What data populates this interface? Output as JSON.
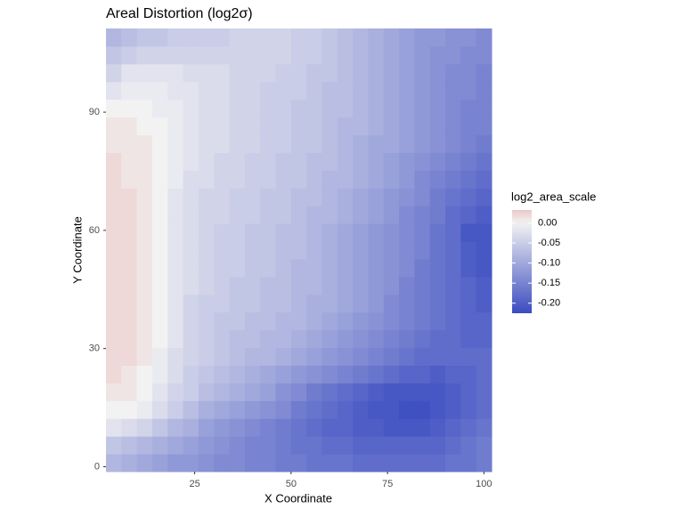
{
  "chart_data": {
    "type": "heatmap",
    "title": "Areal Distortion (log2σ)",
    "x_label": "X Coordinate",
    "y_label": "Y Coordinate",
    "legend_title": "log2_area_scale",
    "x": [
      4,
      8,
      12,
      16,
      20,
      24,
      28,
      32,
      36,
      40,
      44,
      48,
      52,
      56,
      60,
      64,
      68,
      72,
      76,
      80,
      84,
      88,
      92,
      96,
      100
    ],
    "y": [
      1,
      5.5,
      10,
      14.5,
      19,
      23.5,
      28,
      32.5,
      37,
      41.5,
      46,
      50.5,
      55,
      59.5,
      64,
      68.5,
      73,
      77.5,
      82,
      86.5,
      91,
      95.5,
      100,
      104.5,
      109
    ],
    "z": [
      [
        -0.08,
        -0.09,
        -0.1,
        -0.11,
        -0.12,
        -0.12,
        -0.13,
        -0.14,
        -0.14,
        -0.15,
        -0.15,
        -0.16,
        -0.16,
        -0.17,
        -0.17,
        -0.17,
        -0.18,
        -0.18,
        -0.18,
        -0.18,
        -0.18,
        -0.18,
        -0.17,
        -0.17,
        -0.16
      ],
      [
        -0.06,
        -0.07,
        -0.08,
        -0.09,
        -0.1,
        -0.11,
        -0.12,
        -0.13,
        -0.14,
        -0.15,
        -0.15,
        -0.16,
        -0.17,
        -0.17,
        -0.18,
        -0.18,
        -0.19,
        -0.19,
        -0.19,
        -0.19,
        -0.19,
        -0.19,
        -0.18,
        -0.17,
        -0.16
      ],
      [
        -0.02,
        -0.03,
        -0.04,
        -0.06,
        -0.08,
        -0.09,
        -0.11,
        -0.12,
        -0.13,
        -0.14,
        -0.15,
        -0.16,
        -0.17,
        -0.18,
        -0.19,
        -0.19,
        -0.2,
        -0.2,
        -0.21,
        -0.21,
        -0.21,
        -0.2,
        -0.19,
        -0.18,
        -0.17
      ],
      [
        0.0,
        0.0,
        -0.01,
        -0.03,
        -0.05,
        -0.07,
        -0.09,
        -0.1,
        -0.11,
        -0.12,
        -0.13,
        -0.14,
        -0.16,
        -0.17,
        -0.18,
        -0.19,
        -0.2,
        -0.21,
        -0.21,
        -0.22,
        -0.22,
        -0.21,
        -0.2,
        -0.19,
        -0.18
      ],
      [
        0.01,
        0.01,
        0.0,
        -0.02,
        -0.04,
        -0.05,
        -0.07,
        -0.08,
        -0.09,
        -0.1,
        -0.11,
        -0.13,
        -0.14,
        -0.16,
        -0.17,
        -0.18,
        -0.19,
        -0.2,
        -0.21,
        -0.21,
        -0.21,
        -0.21,
        -0.2,
        -0.19,
        -0.18
      ],
      [
        0.02,
        0.01,
        0.0,
        -0.01,
        -0.03,
        -0.05,
        -0.06,
        -0.07,
        -0.08,
        -0.09,
        -0.1,
        -0.11,
        -0.12,
        -0.13,
        -0.14,
        -0.15,
        -0.16,
        -0.17,
        -0.18,
        -0.19,
        -0.19,
        -0.2,
        -0.19,
        -0.19,
        -0.18
      ],
      [
        0.02,
        0.02,
        0.01,
        -0.01,
        -0.03,
        -0.04,
        -0.05,
        -0.06,
        -0.07,
        -0.08,
        -0.08,
        -0.09,
        -0.1,
        -0.11,
        -0.12,
        -0.13,
        -0.14,
        -0.15,
        -0.16,
        -0.17,
        -0.18,
        -0.18,
        -0.18,
        -0.18,
        -0.18
      ],
      [
        0.02,
        0.02,
        0.01,
        0.0,
        -0.02,
        -0.04,
        -0.05,
        -0.06,
        -0.07,
        -0.07,
        -0.08,
        -0.08,
        -0.09,
        -0.1,
        -0.11,
        -0.12,
        -0.13,
        -0.14,
        -0.15,
        -0.16,
        -0.17,
        -0.18,
        -0.18,
        -0.19,
        -0.19
      ],
      [
        0.02,
        0.02,
        0.01,
        0.0,
        -0.02,
        -0.04,
        -0.05,
        -0.06,
        -0.06,
        -0.07,
        -0.07,
        -0.08,
        -0.08,
        -0.09,
        -0.1,
        -0.11,
        -0.12,
        -0.13,
        -0.14,
        -0.15,
        -0.16,
        -0.17,
        -0.18,
        -0.19,
        -0.19
      ],
      [
        0.02,
        0.02,
        0.01,
        0.0,
        -0.02,
        -0.04,
        -0.05,
        -0.05,
        -0.06,
        -0.06,
        -0.07,
        -0.07,
        -0.08,
        -0.09,
        -0.09,
        -0.1,
        -0.11,
        -0.12,
        -0.14,
        -0.15,
        -0.16,
        -0.17,
        -0.18,
        -0.19,
        -0.2
      ],
      [
        0.02,
        0.02,
        0.01,
        0.0,
        -0.02,
        -0.03,
        -0.04,
        -0.05,
        -0.06,
        -0.06,
        -0.07,
        -0.07,
        -0.08,
        -0.08,
        -0.09,
        -0.1,
        -0.11,
        -0.12,
        -0.13,
        -0.15,
        -0.16,
        -0.17,
        -0.18,
        -0.19,
        -0.2
      ],
      [
        0.02,
        0.02,
        0.01,
        0.0,
        -0.02,
        -0.03,
        -0.04,
        -0.05,
        -0.05,
        -0.06,
        -0.06,
        -0.07,
        -0.08,
        -0.08,
        -0.09,
        -0.1,
        -0.11,
        -0.12,
        -0.13,
        -0.14,
        -0.16,
        -0.17,
        -0.18,
        -0.2,
        -0.21
      ],
      [
        0.02,
        0.02,
        0.01,
        0.0,
        -0.02,
        -0.03,
        -0.04,
        -0.05,
        -0.05,
        -0.06,
        -0.06,
        -0.07,
        -0.07,
        -0.08,
        -0.09,
        -0.1,
        -0.11,
        -0.12,
        -0.13,
        -0.14,
        -0.15,
        -0.17,
        -0.18,
        -0.2,
        -0.21
      ],
      [
        0.02,
        0.02,
        0.01,
        0.0,
        -0.02,
        -0.03,
        -0.04,
        -0.05,
        -0.05,
        -0.06,
        -0.06,
        -0.07,
        -0.07,
        -0.08,
        -0.09,
        -0.1,
        -0.11,
        -0.12,
        -0.13,
        -0.14,
        -0.15,
        -0.17,
        -0.18,
        -0.21,
        -0.21
      ],
      [
        0.02,
        0.02,
        0.01,
        0.0,
        -0.02,
        -0.03,
        -0.04,
        -0.04,
        -0.05,
        -0.05,
        -0.06,
        -0.06,
        -0.07,
        -0.08,
        -0.08,
        -0.09,
        -0.1,
        -0.11,
        -0.12,
        -0.14,
        -0.15,
        -0.16,
        -0.18,
        -0.19,
        -0.2
      ],
      [
        0.02,
        0.02,
        0.01,
        0.0,
        -0.02,
        -0.03,
        -0.04,
        -0.04,
        -0.05,
        -0.05,
        -0.06,
        -0.06,
        -0.07,
        -0.07,
        -0.08,
        -0.09,
        -0.1,
        -0.11,
        -0.12,
        -0.13,
        -0.14,
        -0.16,
        -0.17,
        -0.18,
        -0.19
      ],
      [
        0.02,
        0.01,
        0.01,
        0.0,
        -0.01,
        -0.03,
        -0.03,
        -0.04,
        -0.04,
        -0.05,
        -0.05,
        -0.06,
        -0.06,
        -0.07,
        -0.08,
        -0.08,
        -0.09,
        -0.1,
        -0.11,
        -0.12,
        -0.14,
        -0.15,
        -0.16,
        -0.17,
        -0.18
      ],
      [
        0.02,
        0.01,
        0.01,
        0.0,
        -0.01,
        -0.02,
        -0.03,
        -0.04,
        -0.04,
        -0.05,
        -0.05,
        -0.06,
        -0.06,
        -0.07,
        -0.07,
        -0.08,
        -0.09,
        -0.1,
        -0.11,
        -0.12,
        -0.13,
        -0.14,
        -0.15,
        -0.16,
        -0.17
      ],
      [
        0.01,
        0.01,
        0.01,
        0.0,
        -0.01,
        -0.02,
        -0.03,
        -0.03,
        -0.04,
        -0.04,
        -0.05,
        -0.05,
        -0.06,
        -0.06,
        -0.07,
        -0.08,
        -0.09,
        -0.1,
        -0.1,
        -0.11,
        -0.12,
        -0.13,
        -0.14,
        -0.15,
        -0.16
      ],
      [
        0.01,
        0.01,
        0.0,
        0.0,
        -0.01,
        -0.02,
        -0.03,
        -0.03,
        -0.04,
        -0.04,
        -0.05,
        -0.05,
        -0.06,
        -0.06,
        -0.07,
        -0.08,
        -0.08,
        -0.09,
        -0.1,
        -0.11,
        -0.12,
        -0.13,
        -0.14,
        -0.15,
        -0.15
      ],
      [
        0.0,
        0.0,
        0.0,
        -0.01,
        -0.01,
        -0.02,
        -0.03,
        -0.03,
        -0.04,
        -0.04,
        -0.05,
        -0.05,
        -0.06,
        -0.06,
        -0.07,
        -0.07,
        -0.08,
        -0.09,
        -0.1,
        -0.11,
        -0.12,
        -0.13,
        -0.14,
        -0.15,
        -0.15
      ],
      [
        -0.02,
        -0.01,
        -0.01,
        -0.01,
        -0.02,
        -0.02,
        -0.03,
        -0.03,
        -0.04,
        -0.04,
        -0.05,
        -0.05,
        -0.05,
        -0.06,
        -0.07,
        -0.07,
        -0.08,
        -0.09,
        -0.1,
        -0.11,
        -0.12,
        -0.13,
        -0.14,
        -0.14,
        -0.15
      ],
      [
        -0.04,
        -0.02,
        -0.02,
        -0.02,
        -0.02,
        -0.03,
        -0.03,
        -0.03,
        -0.04,
        -0.04,
        -0.04,
        -0.05,
        -0.05,
        -0.06,
        -0.06,
        -0.07,
        -0.08,
        -0.09,
        -0.1,
        -0.11,
        -0.12,
        -0.13,
        -0.14,
        -0.14,
        -0.15
      ],
      [
        -0.06,
        -0.05,
        -0.04,
        -0.04,
        -0.04,
        -0.04,
        -0.04,
        -0.04,
        -0.04,
        -0.04,
        -0.04,
        -0.04,
        -0.05,
        -0.05,
        -0.06,
        -0.07,
        -0.08,
        -0.09,
        -0.1,
        -0.11,
        -0.12,
        -0.13,
        -0.13,
        -0.14,
        -0.14
      ],
      [
        -0.08,
        -0.07,
        -0.06,
        -0.06,
        -0.05,
        -0.05,
        -0.05,
        -0.05,
        -0.04,
        -0.04,
        -0.04,
        -0.04,
        -0.05,
        -0.05,
        -0.06,
        -0.07,
        -0.08,
        -0.09,
        -0.1,
        -0.11,
        -0.12,
        -0.12,
        -0.13,
        -0.13,
        -0.14
      ]
    ],
    "xlim": [
      2,
      102
    ],
    "ylim": [
      -1.25,
      111.25
    ],
    "xticks": [
      25,
      50,
      75,
      100
    ],
    "yticks": [
      0,
      30,
      60,
      90
    ],
    "zlim": [
      -0.225,
      0.032
    ],
    "zticks": [
      {
        "value": 0,
        "label": "0.00"
      },
      {
        "value": -0.05,
        "label": "-0.05"
      },
      {
        "value": -0.1,
        "label": "-0.10"
      },
      {
        "value": -0.15,
        "label": "-0.15"
      },
      {
        "value": -0.2,
        "label": "-0.20"
      }
    ],
    "colors": {
      "low": "#3b4cc0",
      "mid": "#f2f2f2",
      "high": "#ecc8c8"
    }
  }
}
